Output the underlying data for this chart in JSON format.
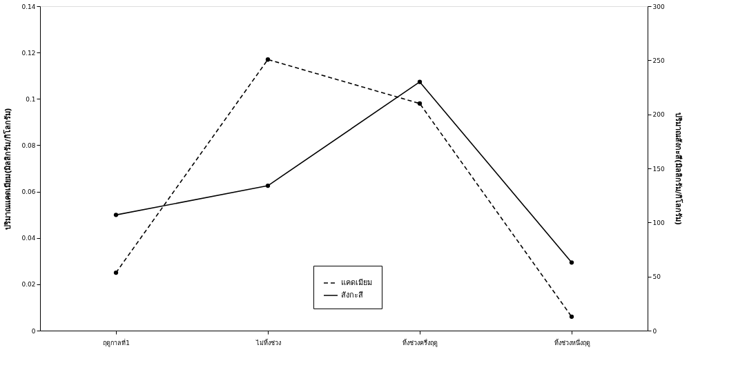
{
  "chart_data": {
    "type": "line",
    "ylabel": "ปริมาณแคดเมียม(มิลลิกรัม/กิโลกรัม)",
    "y2label": "ปริมาณสังกะสี(มิลลิกรัม/กิโลกรัม)",
    "categories": [
      "ฤดูกาลที่1",
      "ไม่ทิ้งช่วง",
      "ทิ้งช่วงครึ่งฤดู",
      "ทิ้งช่วงหนึ่งฤดู"
    ],
    "series": [
      {
        "name": "แคดเมียม",
        "color": "#000000",
        "values": [
          0.025,
          0.117,
          0.098,
          0.006
        ],
        "line_style": "dashed"
      },
      {
        "name": "สังกะสี",
        "color": "#000000",
        "values": [
          107,
          134,
          230,
          63
        ],
        "axis": "y2",
        "line_style": "solid"
      }
    ],
    "ylim": [
      0,
      0.14
    ],
    "yticks": [
      0,
      0.02,
      0.04,
      0.06,
      0.08,
      0.1,
      0.12,
      0.14
    ],
    "y2lim": [
      0,
      300
    ],
    "y2ticks": [
      0,
      50,
      100,
      150,
      200,
      250,
      300
    ],
    "marker": "circle",
    "grid": false,
    "legend": "bottom"
  }
}
